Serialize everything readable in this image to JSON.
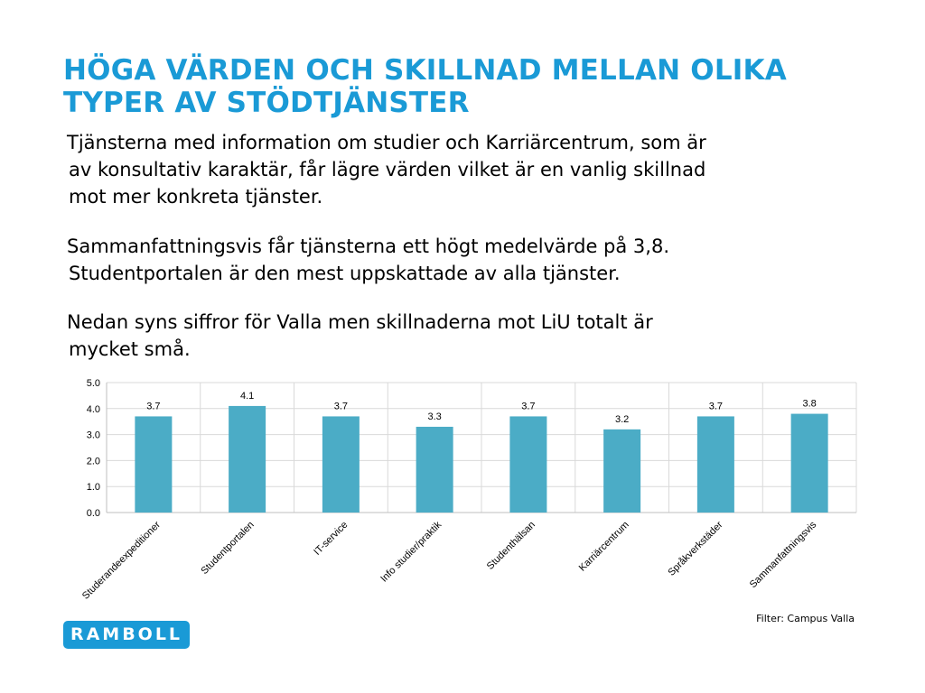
{
  "title_lines": [
    "HÖGA VÄRDEN OCH SKILLNAD MELLAN OLIKA",
    "TYPER AV STÖDTJÄNSTER"
  ],
  "paragraphs": [
    [
      "Tjänsterna med information om studier och Karriärcentrum, som är",
      "av konsultativ karaktär, får lägre värden vilket är en vanlig skillnad",
      "mot mer konkreta tjänster."
    ],
    [
      "Sammanfattningsvis får tjänsterna ett högt medelvärde på 3,8.",
      "Studentportalen är den mest uppskattade av alla tjänster."
    ],
    [
      "Nedan syns siffror för Valla men skillnaderna mot LiU totalt är",
      "mycket små."
    ]
  ],
  "filter_text": "Filter: Campus Valla",
  "logo_text": "RAMBOLL",
  "colors": {
    "title": "#1a9ad6",
    "bar": "#4bacc6",
    "logo": "#1a9ad6"
  },
  "chart_data": {
    "type": "bar",
    "title": "",
    "xlabel": "",
    "ylabel": "",
    "categories": [
      "Studerandeexpeditioner",
      "Studentportalen",
      "IT-service",
      "Info studier/praktik",
      "Studenthälsan",
      "Karriärcentrum",
      "Språkverkstäder",
      "Sammanfattningsvis"
    ],
    "values": [
      3.7,
      4.1,
      3.7,
      3.3,
      3.7,
      3.2,
      3.7,
      3.8
    ],
    "data_labels": [
      "3.7",
      "4.1",
      "3.7",
      "3.3",
      "3.7",
      "3.2",
      "3.7",
      "3.8"
    ],
    "ylim": [
      0,
      5
    ],
    "yticks": [
      "0.0",
      "1.0",
      "2.0",
      "3.0",
      "4.0",
      "5.0"
    ],
    "grid": true,
    "legend": "none"
  }
}
